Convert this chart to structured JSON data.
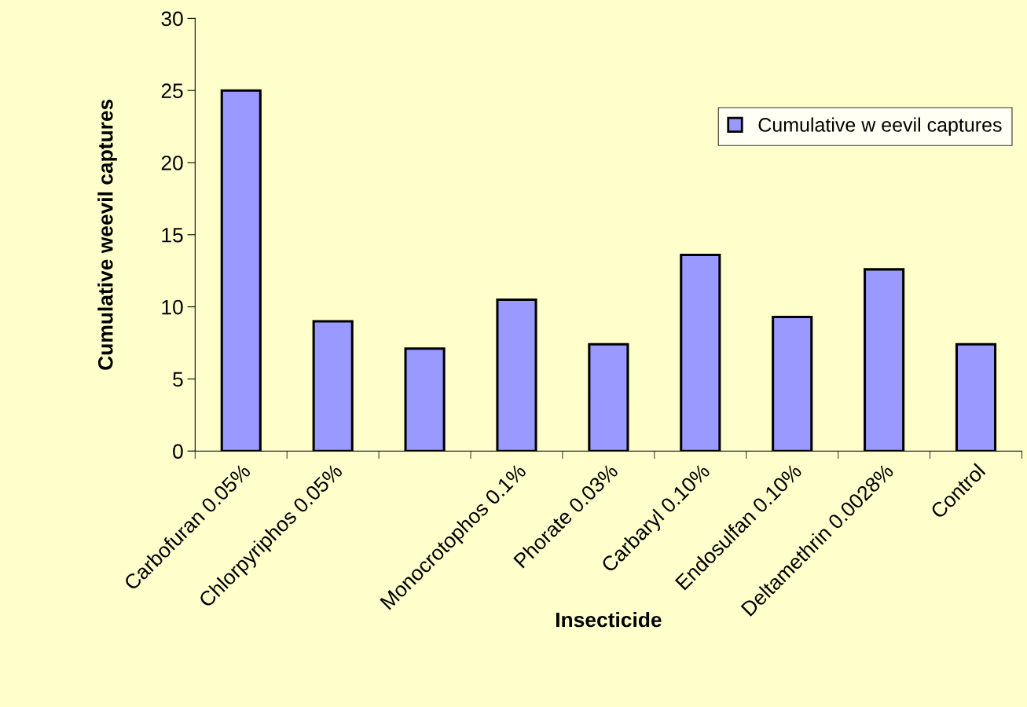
{
  "chart_data": {
    "type": "bar",
    "xlabel": "Insecticide",
    "ylabel": "Cumulative weevil captures",
    "categories": [
      "Carbofuran 0.05%",
      "Chlorpyriphos 0.05%",
      null,
      "Monocrotophos 0.1%",
      "Phorate 0.03%",
      "Carbaryl 0.10%",
      "Endosulfan 0.10%",
      "Deltamethrin 0.0028%",
      "Control"
    ],
    "series": [
      {
        "name": "Cumulative w eevil captures",
        "color": "#9999ff",
        "values": [
          25,
          9.0,
          7.1,
          10.5,
          7.4,
          13.6,
          9.3,
          12.6,
          7.4
        ]
      }
    ],
    "ylim": [
      0,
      30
    ],
    "yticks": [
      0,
      5,
      10,
      15,
      20,
      25,
      30
    ],
    "grid": false,
    "legend": "right"
  }
}
